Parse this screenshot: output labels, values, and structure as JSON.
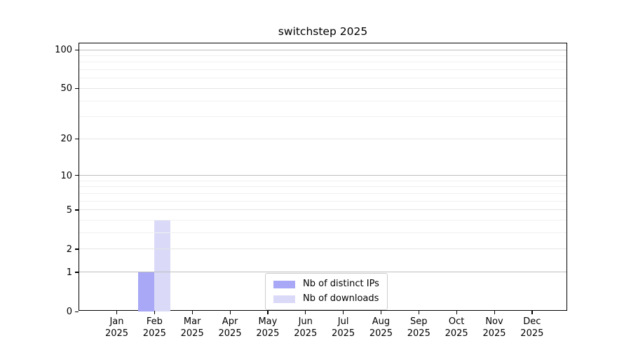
{
  "figure": {
    "title": "switchstep 2025"
  },
  "chart_data": {
    "type": "bar",
    "title": "switchstep 2025",
    "x_categories": [
      {
        "month": "Jan",
        "year": "2025"
      },
      {
        "month": "Feb",
        "year": "2025"
      },
      {
        "month": "Mar",
        "year": "2025"
      },
      {
        "month": "Apr",
        "year": "2025"
      },
      {
        "month": "May",
        "year": "2025"
      },
      {
        "month": "Jun",
        "year": "2025"
      },
      {
        "month": "Jul",
        "year": "2025"
      },
      {
        "month": "Aug",
        "year": "2025"
      },
      {
        "month": "Sep",
        "year": "2025"
      },
      {
        "month": "Oct",
        "year": "2025"
      },
      {
        "month": "Nov",
        "year": "2025"
      },
      {
        "month": "Dec",
        "year": "2025"
      }
    ],
    "series": [
      {
        "name": "Nb of distinct IPs",
        "color": "#a8a8f6",
        "values": [
          0,
          1,
          0,
          0,
          0,
          0,
          0,
          0,
          0,
          0,
          0,
          0
        ]
      },
      {
        "name": "Nb of downloads",
        "color": "#dadaf8",
        "values": [
          0,
          4,
          0,
          0,
          0,
          0,
          0,
          0,
          0,
          0,
          0,
          0
        ]
      }
    ],
    "yscale": "log1p",
    "ylim": [
      0,
      112
    ],
    "y_ticks": [
      0,
      1,
      2,
      5,
      10,
      20,
      50,
      100
    ],
    "y_decade_ticks": [
      1,
      10,
      100
    ],
    "y_minor_ticks": [
      3,
      4,
      6,
      7,
      8,
      9,
      30,
      40,
      60,
      70,
      80,
      90
    ],
    "grid": true,
    "legend_position": "lower center"
  },
  "colors": {
    "decade_gridline": "#bdbdbd",
    "tick_gridline": "#e4e4e4",
    "minor_gridline": "#f0f0f0",
    "axis": "#000000",
    "text": "#000000",
    "background": "#ffffff",
    "legend_border": "#cccccc"
  }
}
